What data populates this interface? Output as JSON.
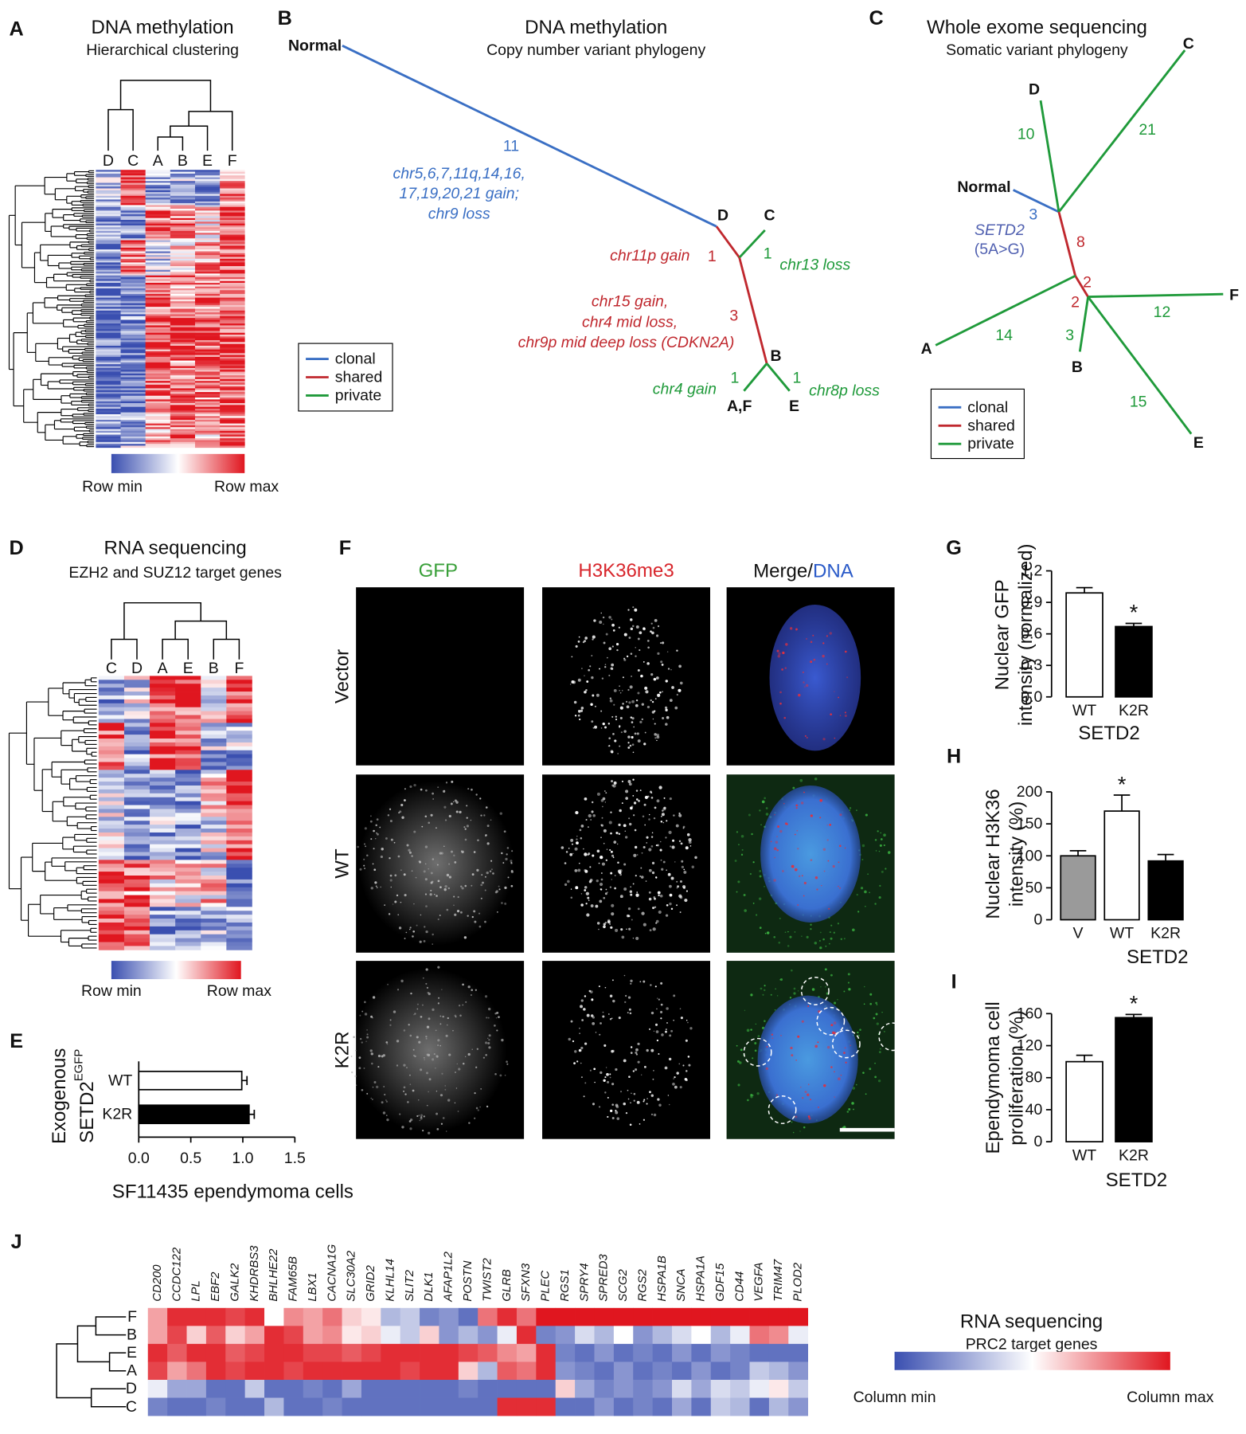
{
  "panels": {
    "A": {
      "letter": "A",
      "title": "DNA methylation",
      "subtitle": "Hierarchical clustering",
      "columns": [
        "D",
        "C",
        "A",
        "B",
        "E",
        "F"
      ],
      "colorbar": [
        "Row min",
        "Row max"
      ]
    },
    "B": {
      "letter": "B",
      "title": "DNA methylation",
      "subtitle": "Copy number variant phylogeny",
      "nodes": [
        "Normal",
        "D",
        "C",
        "B",
        "A,F",
        "E"
      ],
      "branch_counts": [
        11,
        1,
        1,
        3,
        1,
        1
      ],
      "annotations": [
        {
          "text": "chr5,6,7,11q,14,16,",
          "color": "#3a6fc4"
        },
        {
          "text": "17,19,20,21 gain;",
          "color": "#3a6fc4"
        },
        {
          "text": "chr9 loss",
          "color": "#3a6fc4"
        },
        {
          "text": "chr11p gain",
          "color": "#c0282e"
        },
        {
          "text": "chr13 loss",
          "color": "#1f9a3a"
        },
        {
          "text": "chr15 gain,",
          "color": "#c0282e"
        },
        {
          "text": "chr4 mid loss,",
          "color": "#c0282e"
        },
        {
          "text": "chr9p mid deep loss (CDKN2A)",
          "color": "#c0282e"
        },
        {
          "text": "chr4 gain",
          "color": "#1f9a3a"
        },
        {
          "text": "chr8p loss",
          "color": "#1f9a3a"
        }
      ],
      "legend": [
        {
          "label": "clonal",
          "color": "#3a6fc4"
        },
        {
          "label": "shared",
          "color": "#c0282e"
        },
        {
          "label": "private",
          "color": "#1f9a3a"
        }
      ]
    },
    "C": {
      "letter": "C",
      "title": "Whole exome sequencing",
      "subtitle": "Somatic variant phylogeny",
      "nodes": [
        "Normal",
        "D",
        "C",
        "A",
        "F",
        "B",
        "E"
      ],
      "branch_counts": [
        3,
        10,
        21,
        8,
        2,
        2,
        14,
        12,
        3,
        15
      ],
      "mutation": [
        "SETD2",
        "(5A>G)"
      ],
      "legend": [
        {
          "label": "clonal",
          "color": "#3a6fc4"
        },
        {
          "label": "shared",
          "color": "#c0282e"
        },
        {
          "label": "private",
          "color": "#1f9a3a"
        }
      ]
    },
    "D": {
      "letter": "D",
      "title": "RNA sequencing",
      "subtitle": "EZH2 and SUZ12 target genes",
      "columns": [
        "C",
        "D",
        "A",
        "E",
        "B",
        "F"
      ],
      "colorbar": [
        "Row min",
        "Row max"
      ]
    },
    "E": {
      "letter": "E"
    },
    "F": {
      "letter": "F",
      "columns": [
        "GFP",
        "H3K36me3",
        "Merge/",
        "DNA"
      ],
      "rows": [
        "Vector",
        "WT",
        "K2R"
      ]
    },
    "G": {
      "letter": "G"
    },
    "H": {
      "letter": "H"
    },
    "I": {
      "letter": "I"
    },
    "J": {
      "letter": "J",
      "title": "RNA sequencing",
      "subtitle": "PRC2 target genes",
      "colorbar": [
        "Column min",
        "Column max"
      ],
      "genes": [
        "CD200",
        "CCDC122",
        "LPL",
        "EBF2",
        "GALK2",
        "KHDRBS3",
        "BHLHE22",
        "FAM65B",
        "LBX1",
        "CACNA1G",
        "SLC30A2",
        "GRID2",
        "KLHL14",
        "SLIT2",
        "DLK1",
        "AFAP1L2",
        "POSTN",
        "TWIST2",
        "GLRB",
        "SFXN3",
        "PLEC",
        "RGS1",
        "SPRY4",
        "SPRED3",
        "SCG2",
        "RGS2",
        "HSPA1B",
        "SNCA",
        "HSPA1A",
        "GDF15",
        "CD44",
        "VEGFA",
        "TRIM47",
        "PLOD2"
      ],
      "rows": [
        "F",
        "B",
        "E",
        "A",
        "D",
        "C"
      ],
      "values": [
        [
          0.7,
          0.95,
          0.95,
          0.95,
          0.9,
          0.95,
          0.5,
          0.75,
          0.7,
          0.8,
          0.6,
          0.55,
          0.3,
          0.35,
          0.15,
          0.2,
          0.1,
          0.8,
          0.95,
          0.8,
          1,
          1,
          1,
          1,
          1,
          1,
          1,
          1,
          1,
          1,
          1,
          1,
          1,
          1
        ],
        [
          0.7,
          0.9,
          0.6,
          0.85,
          0.6,
          0.7,
          0.95,
          0.9,
          0.7,
          0.75,
          0.55,
          0.6,
          0.45,
          0.35,
          0.6,
          0.2,
          0.3,
          0.2,
          0.45,
          0.95,
          0.15,
          0.2,
          0.4,
          0.3,
          0.5,
          0.2,
          0.3,
          0.4,
          0.5,
          0.3,
          0.45,
          0.8,
          0.75,
          0.45
        ],
        [
          0.95,
          0.85,
          0.95,
          0.95,
          0.85,
          0.9,
          0.95,
          0.95,
          0.9,
          0.9,
          0.85,
          0.9,
          0.95,
          0.95,
          0.95,
          0.95,
          0.9,
          0.85,
          0.75,
          0.7,
          0.95,
          0.15,
          0.1,
          0.2,
          0.1,
          0.15,
          0.1,
          0.2,
          0.1,
          0.2,
          0.15,
          0.1,
          0.1,
          0.1
        ],
        [
          0.9,
          0.7,
          0.8,
          0.95,
          0.9,
          0.95,
          0.95,
          0.9,
          0.95,
          0.95,
          0.95,
          0.95,
          0.95,
          0.9,
          0.95,
          0.95,
          0.6,
          0.3,
          0.85,
          0.8,
          0.95,
          0.2,
          0.15,
          0.1,
          0.2,
          0.1,
          0.15,
          0.1,
          0.2,
          0.1,
          0.15,
          0.35,
          0.3,
          0.2
        ],
        [
          0.45,
          0.25,
          0.25,
          0.1,
          0.1,
          0.35,
          0.1,
          0.1,
          0.15,
          0.1,
          0.25,
          0.1,
          0.1,
          0.1,
          0.1,
          0.1,
          0.15,
          0.1,
          0.1,
          0.1,
          0.1,
          0.6,
          0.25,
          0.15,
          0.2,
          0.15,
          0.2,
          0.4,
          0.25,
          0.4,
          0.35,
          0.45,
          0.55,
          0.35
        ],
        [
          0.15,
          0.1,
          0.1,
          0.15,
          0.1,
          0.1,
          0.3,
          0.1,
          0.1,
          0.15,
          0.1,
          0.1,
          0.1,
          0.1,
          0.1,
          0.1,
          0.1,
          0.1,
          0.95,
          0.95,
          0.95,
          0.1,
          0.1,
          0.2,
          0.1,
          0.15,
          0.1,
          0.25,
          0.1,
          0.35,
          0.3,
          0.1,
          0.3,
          0.2
        ]
      ]
    }
  },
  "chart_data": [
    {
      "type": "bar",
      "orientation": "horizontal",
      "ylabel": [
        "Exogenous",
        "SETD2"
      ],
      "ylabel_superscript": "EGFP",
      "xlabel": "SF11435 ependymoma cells",
      "categories": [
        "WT",
        "K2R"
      ],
      "values": [
        0.99,
        1.06
      ],
      "errors": [
        0.05,
        0.05
      ],
      "colors": [
        "#ffffff",
        "#000000"
      ],
      "xlim": [
        0,
        1.5
      ],
      "xticks": [
        {
          "value": 0,
          "label": "0.0"
        },
        {
          "value": 0.5,
          "label": "0.5"
        },
        {
          "value": 1,
          "label": "1.0"
        },
        {
          "value": 1.5,
          "label": "1.5"
        }
      ]
    },
    {
      "type": "bar",
      "ylabel": [
        "Nuclear GFP",
        "intensity (normalized)"
      ],
      "xlabel": "SETD2",
      "categories": [
        "WT",
        "K2R"
      ],
      "values": [
        0.99,
        0.67
      ],
      "errors": [
        0.05,
        0.03
      ],
      "colors": [
        "#ffffff",
        "#000000"
      ],
      "ylim": [
        0,
        1.2
      ],
      "yticks": [
        {
          "value": 0,
          "label": "0.0"
        },
        {
          "value": 0.3,
          "label": "0.3"
        },
        {
          "value": 0.6,
          "label": "0.6"
        },
        {
          "value": 0.9,
          "label": "0.9"
        },
        {
          "value": 1.2,
          "label": "1.2"
        }
      ],
      "annotations": [
        {
          "text": "*",
          "category": "K2R"
        }
      ]
    },
    {
      "type": "bar",
      "ylabel": [
        "Nuclear H3K36",
        "intensity (%)"
      ],
      "xlabel": "SETD2",
      "categories": [
        "V",
        "WT",
        "K2R"
      ],
      "values": [
        100,
        170,
        92
      ],
      "errors": [
        8,
        25,
        10
      ],
      "colors": [
        "#9a9a9a",
        "#ffffff",
        "#000000"
      ],
      "ylim": [
        0,
        200
      ],
      "yticks": [
        0,
        50,
        100,
        150,
        200
      ],
      "annotations": [
        {
          "text": "*",
          "category": "WT"
        }
      ]
    },
    {
      "type": "bar",
      "ylabel": [
        "Ependymoma cell",
        "proliferation (%)"
      ],
      "xlabel": "SETD2",
      "categories": [
        "WT",
        "K2R"
      ],
      "values": [
        100,
        155
      ],
      "errors": [
        8,
        4
      ],
      "colors": [
        "#ffffff",
        "#000000"
      ],
      "ylim": [
        0,
        170
      ],
      "yticks": [
        0,
        40,
        80,
        120,
        160
      ],
      "annotations": [
        {
          "text": "*",
          "category": "K2R"
        }
      ]
    }
  ]
}
